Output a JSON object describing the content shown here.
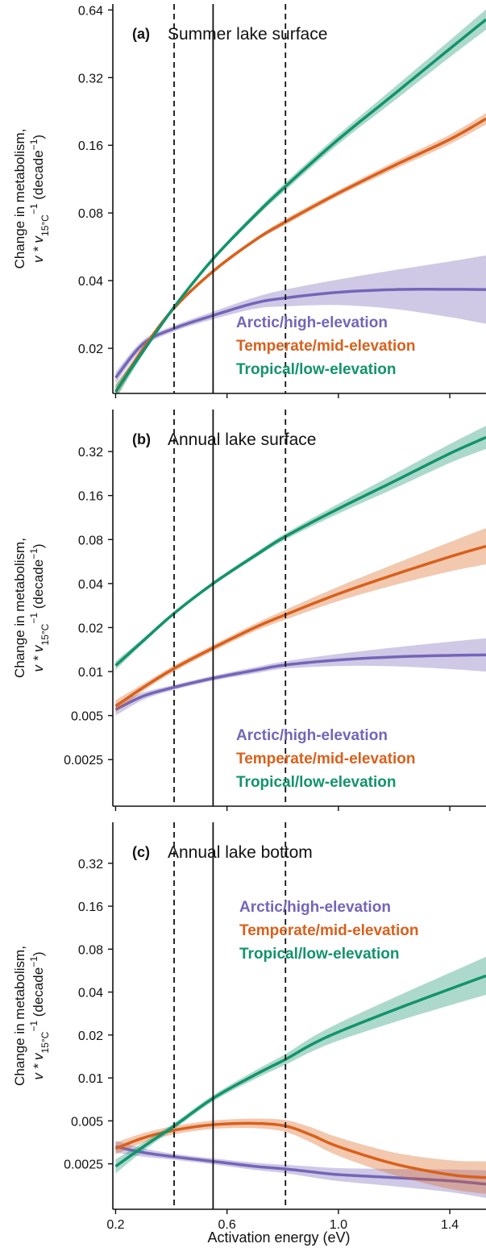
{
  "colors": {
    "arctic": "#7565b8",
    "temperate": "#d9601b",
    "tropical": "#12936b",
    "reference_lines": "#111111"
  },
  "shared_axis": {
    "xlabel": "Activation energy (eV)",
    "xlim": [
      0.19,
      1.53
    ],
    "xticks": [
      0.2,
      0.6,
      1.0,
      1.4
    ],
    "xtick_labels": [
      "0.2",
      "0.6",
      "1.0",
      "1.4"
    ],
    "ylabel_line1": "Change in metabolism,",
    "ylabel_line2_prefix": "v * v",
    "ylabel_line2_sub": "15°C",
    "ylabel_line2_sup": "−1",
    "ylabel_line2_unit": " (decade",
    "ylabel_line2_unit_sup": "−1",
    "ylabel_line2_close": ")",
    "y_scale": "log",
    "reference_lines": {
      "solid": 0.55,
      "dashed": [
        0.41,
        0.81
      ]
    }
  },
  "legend_labels": [
    "Arctic/high-elevation",
    "Temperate/mid-elevation",
    "Tropical/low-elevation"
  ],
  "chart_data": [
    {
      "type": "line",
      "panel_letter": "(a)",
      "title": "Summer lake surface",
      "ylim": [
        0.0126,
        0.68
      ],
      "yticks": [
        0.02,
        0.04,
        0.08,
        0.16,
        0.32,
        0.64
      ],
      "ytick_labels": [
        "0.02",
        "0.04",
        "0.08",
        "0.16",
        "0.32",
        "0.64"
      ],
      "legend_position": "lower-right",
      "x": [
        0.2,
        0.3,
        0.41,
        0.55,
        0.7,
        0.81,
        1.0,
        1.2,
        1.4,
        1.53
      ],
      "series": [
        {
          "name": "Arctic/high-elevation",
          "color_key": "arctic",
          "values": [
            0.0148,
            0.021,
            0.0245,
            0.028,
            0.0318,
            0.0335,
            0.0355,
            0.0365,
            0.0366,
            0.0365
          ],
          "band_factor": [
            1.06,
            1.04,
            1.03,
            1.04,
            1.06,
            1.09,
            1.14,
            1.22,
            1.33,
            1.42
          ]
        },
        {
          "name": "Temperate/mid-elevation",
          "color_key": "temperate",
          "values": [
            0.0128,
            0.02,
            0.0302,
            0.044,
            0.0605,
            0.073,
            0.098,
            0.13,
            0.17,
            0.21
          ],
          "band_factor": [
            1.07,
            1.03,
            1.02,
            1.02,
            1.02,
            1.03,
            1.03,
            1.04,
            1.05,
            1.06
          ]
        },
        {
          "name": "Tropical/low-elevation",
          "color_key": "tropical",
          "values": [
            0.0128,
            0.0195,
            0.0305,
            0.05,
            0.078,
            0.105,
            0.17,
            0.27,
            0.43,
            0.58
          ],
          "band_factor": [
            1.08,
            1.03,
            1.02,
            1.02,
            1.03,
            1.04,
            1.05,
            1.07,
            1.09,
            1.11
          ]
        }
      ]
    },
    {
      "type": "line",
      "panel_letter": "(b)",
      "title": "Annual lake surface",
      "ylim": [
        0.0012,
        0.62
      ],
      "yticks": [
        0.0025,
        0.005,
        0.01,
        0.02,
        0.04,
        0.08,
        0.16,
        0.32
      ],
      "ytick_labels": [
        "0.0025",
        "0.005",
        "0.01",
        "0.02",
        "0.04",
        "0.08",
        "0.16",
        "0.32"
      ],
      "legend_position": "lower-right",
      "x": [
        0.2,
        0.3,
        0.41,
        0.55,
        0.7,
        0.81,
        1.0,
        1.2,
        1.4,
        1.53
      ],
      "series": [
        {
          "name": "Arctic/high-elevation",
          "color_key": "arctic",
          "values": [
            0.0055,
            0.0068,
            0.0078,
            0.009,
            0.0102,
            0.0111,
            0.012,
            0.0126,
            0.0129,
            0.013
          ],
          "band_factor": [
            1.1,
            1.06,
            1.04,
            1.04,
            1.05,
            1.06,
            1.1,
            1.16,
            1.24,
            1.3
          ]
        },
        {
          "name": "Temperate/mid-elevation",
          "color_key": "temperate",
          "values": [
            0.0058,
            0.0078,
            0.0105,
            0.0145,
            0.02,
            0.0245,
            0.034,
            0.046,
            0.061,
            0.072
          ],
          "band_factor": [
            1.1,
            1.06,
            1.05,
            1.05,
            1.06,
            1.08,
            1.12,
            1.18,
            1.26,
            1.33
          ]
        },
        {
          "name": "Tropical/low-elevation",
          "color_key": "tropical",
          "values": [
            0.011,
            0.0163,
            0.025,
            0.04,
            0.062,
            0.084,
            0.13,
            0.2,
            0.31,
            0.4
          ],
          "band_factor": [
            1.07,
            1.04,
            1.03,
            1.03,
            1.04,
            1.05,
            1.08,
            1.12,
            1.16,
            1.2
          ]
        }
      ]
    },
    {
      "type": "line",
      "panel_letter": "(c)",
      "title": "Annual lake bottom",
      "ylim": [
        0.0012,
        0.62
      ],
      "yticks": [
        0.0025,
        0.005,
        0.01,
        0.02,
        0.04,
        0.08,
        0.16,
        0.32
      ],
      "ytick_labels": [
        "0.0025",
        "0.005",
        "0.01",
        "0.02",
        "0.04",
        "0.08",
        "0.16",
        "0.32"
      ],
      "legend_position": "top-right",
      "x": [
        0.2,
        0.3,
        0.41,
        0.55,
        0.7,
        0.81,
        0.9,
        1.0,
        1.2,
        1.4,
        1.53
      ],
      "series": [
        {
          "name": "Arctic/high-elevation",
          "color_key": "arctic",
          "values": [
            0.0033,
            0.003,
            0.0028,
            0.0026,
            0.0024,
            0.0023,
            0.0022,
            0.0021,
            0.002,
            0.0019,
            0.0018
          ],
          "band_factor": [
            1.1,
            1.07,
            1.05,
            1.05,
            1.06,
            1.07,
            1.09,
            1.11,
            1.15,
            1.2,
            1.25
          ]
        },
        {
          "name": "Temperate/mid-elevation",
          "color_key": "temperate",
          "values": [
            0.0032,
            0.0038,
            0.0043,
            0.0047,
            0.0048,
            0.0046,
            0.004,
            0.0033,
            0.0025,
            0.0021,
            0.002
          ],
          "band_factor": [
            1.1,
            1.08,
            1.07,
            1.07,
            1.08,
            1.1,
            1.13,
            1.16,
            1.2,
            1.26,
            1.3
          ]
        },
        {
          "name": "Tropical/low-elevation",
          "color_key": "tropical",
          "values": [
            0.0024,
            0.0033,
            0.0046,
            0.0072,
            0.0105,
            0.0135,
            0.017,
            0.021,
            0.03,
            0.042,
            0.052
          ],
          "band_factor": [
            1.12,
            1.07,
            1.05,
            1.05,
            1.07,
            1.09,
            1.12,
            1.15,
            1.22,
            1.3,
            1.36
          ]
        }
      ]
    }
  ]
}
